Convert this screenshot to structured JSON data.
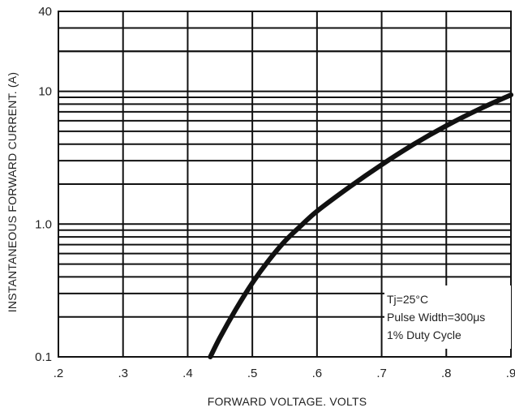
{
  "chart_data": {
    "type": "line",
    "title": "",
    "xlabel": "FORWARD VOLTAGE. VOLTS",
    "ylabel": "INSTANTANEOUS FORWARD CURRENT. (A)",
    "xlim": [
      0.2,
      0.9
    ],
    "ylim": [
      0.1,
      40
    ],
    "yscale": "log",
    "grid": true,
    "x_ticks": [
      0.2,
      0.3,
      0.4,
      0.5,
      0.6,
      0.7,
      0.8,
      0.9
    ],
    "x_tick_labels": [
      ".2",
      ".3",
      ".4",
      ".5",
      ".6",
      ".7",
      ".8",
      ".9"
    ],
    "y_ticks": [
      0.1,
      1.0,
      10,
      40
    ],
    "y_tick_labels": [
      "0.1",
      "1.0",
      "10",
      "40"
    ],
    "series": [
      {
        "x": [
          0.435,
          0.45,
          0.475,
          0.5,
          0.525,
          0.55,
          0.575,
          0.6,
          0.65,
          0.7,
          0.75,
          0.8,
          0.85,
          0.9
        ],
        "y": [
          0.1,
          0.14,
          0.23,
          0.36,
          0.53,
          0.74,
          0.97,
          1.25,
          1.9,
          2.8,
          4.0,
          5.5,
          7.3,
          9.4
        ]
      }
    ],
    "annotation": {
      "lines": [
        "Tj=25°C",
        "Pulse Width=300μs",
        "1% Duty Cycle"
      ]
    }
  }
}
